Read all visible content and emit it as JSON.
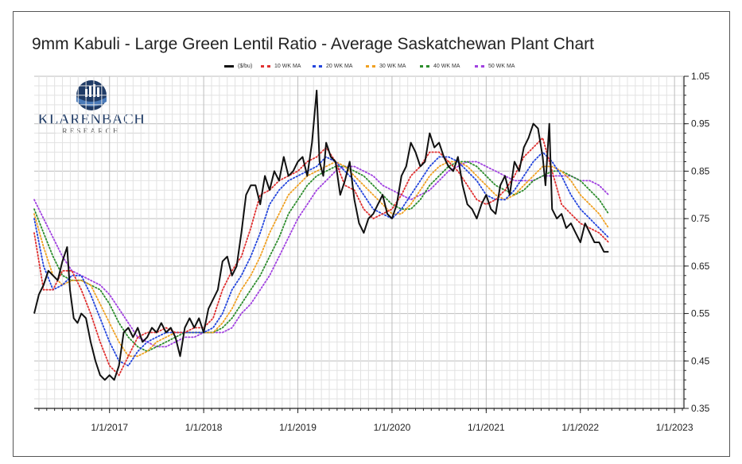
{
  "title": "9mm Kabuli - Large Green Lentil Ratio - Average Saskatchewan Plant Chart",
  "logo": {
    "brand": "KLARENBACH",
    "sub": "RESEARCH"
  },
  "legend": [
    {
      "label": "($/bu)",
      "color": "#111111",
      "style": "solid"
    },
    {
      "label": "10 WK MA",
      "color": "#e03030",
      "style": "dotted"
    },
    {
      "label": "20 WK MA",
      "color": "#2244dd",
      "style": "dotted"
    },
    {
      "label": "30 WK MA",
      "color": "#f0a020",
      "style": "dotted"
    },
    {
      "label": "40 WK MA",
      "color": "#2c8c2c",
      "style": "dotted"
    },
    {
      "label": "50 WK MA",
      "color": "#a040e0",
      "style": "dotted"
    }
  ],
  "chart_data": {
    "type": "line",
    "title": "9mm Kabuli - Large Green Lentil Ratio - Average Saskatchewan Plant Chart",
    "x_ticks": [
      "1/1/2017",
      "1/1/2018",
      "1/1/2019",
      "1/1/2020",
      "1/1/2021",
      "1/1/2022",
      "1/1/2023"
    ],
    "y_ticks": [
      "1.05",
      "0.95",
      "0.85",
      "0.75",
      "0.65",
      "0.55",
      "0.45",
      "0.35"
    ],
    "xlim": [
      2016.2,
      2023.1
    ],
    "ylim": [
      0.35,
      1.05
    ],
    "grid": true,
    "series": [
      {
        "name": "($/bu)",
        "color": "#111111",
        "x": [
          2016.2,
          2016.25,
          2016.3,
          2016.35,
          2016.4,
          2016.45,
          2016.5,
          2016.55,
          2016.58,
          2016.62,
          2016.66,
          2016.7,
          2016.75,
          2016.8,
          2016.85,
          2016.9,
          2016.95,
          2017.0,
          2017.05,
          2017.1,
          2017.15,
          2017.2,
          2017.25,
          2017.3,
          2017.35,
          2017.4,
          2017.45,
          2017.5,
          2017.55,
          2017.6,
          2017.65,
          2017.7,
          2017.75,
          2017.8,
          2017.85,
          2017.9,
          2017.95,
          2018.0,
          2018.05,
          2018.1,
          2018.15,
          2018.2,
          2018.25,
          2018.3,
          2018.35,
          2018.4,
          2018.45,
          2018.5,
          2018.55,
          2018.6,
          2018.65,
          2018.7,
          2018.75,
          2018.8,
          2018.85,
          2018.9,
          2018.95,
          2019.0,
          2019.05,
          2019.1,
          2019.15,
          2019.2,
          2019.23,
          2019.27,
          2019.3,
          2019.35,
          2019.4,
          2019.45,
          2019.5,
          2019.55,
          2019.6,
          2019.65,
          2019.7,
          2019.75,
          2019.8,
          2019.85,
          2019.9,
          2019.95,
          2020.0,
          2020.05,
          2020.1,
          2020.15,
          2020.2,
          2020.25,
          2020.3,
          2020.35,
          2020.4,
          2020.45,
          2020.5,
          2020.55,
          2020.6,
          2020.65,
          2020.7,
          2020.75,
          2020.8,
          2020.85,
          2020.9,
          2020.95,
          2021.0,
          2021.05,
          2021.1,
          2021.15,
          2021.2,
          2021.25,
          2021.3,
          2021.35,
          2021.4,
          2021.45,
          2021.5,
          2021.55,
          2021.6,
          2021.63,
          2021.67,
          2021.7,
          2021.75,
          2021.8,
          2021.85,
          2021.9,
          2021.95,
          2022.0,
          2022.05,
          2022.1,
          2022.15,
          2022.2,
          2022.25,
          2022.3
        ],
        "y": [
          0.55,
          0.59,
          0.61,
          0.64,
          0.63,
          0.62,
          0.66,
          0.69,
          0.6,
          0.54,
          0.53,
          0.55,
          0.54,
          0.49,
          0.45,
          0.42,
          0.41,
          0.42,
          0.41,
          0.44,
          0.51,
          0.52,
          0.5,
          0.52,
          0.49,
          0.5,
          0.52,
          0.51,
          0.53,
          0.51,
          0.52,
          0.5,
          0.46,
          0.52,
          0.54,
          0.52,
          0.54,
          0.51,
          0.56,
          0.58,
          0.6,
          0.66,
          0.67,
          0.63,
          0.65,
          0.72,
          0.8,
          0.82,
          0.82,
          0.78,
          0.84,
          0.81,
          0.85,
          0.83,
          0.88,
          0.84,
          0.85,
          0.87,
          0.88,
          0.84,
          0.91,
          1.02,
          0.87,
          0.84,
          0.91,
          0.88,
          0.87,
          0.8,
          0.83,
          0.87,
          0.79,
          0.74,
          0.72,
          0.75,
          0.76,
          0.78,
          0.8,
          0.76,
          0.75,
          0.78,
          0.84,
          0.86,
          0.91,
          0.89,
          0.86,
          0.87,
          0.93,
          0.9,
          0.91,
          0.88,
          0.86,
          0.85,
          0.88,
          0.82,
          0.78,
          0.77,
          0.75,
          0.78,
          0.8,
          0.77,
          0.76,
          0.82,
          0.84,
          0.8,
          0.87,
          0.85,
          0.9,
          0.92,
          0.95,
          0.94,
          0.88,
          0.82,
          0.95,
          0.77,
          0.75,
          0.76,
          0.73,
          0.74,
          0.72,
          0.7,
          0.74,
          0.72,
          0.7,
          0.7,
          0.68,
          0.68
        ]
      },
      {
        "name": "10 WK MA",
        "color": "#e03030",
        "x": [
          2016.2,
          2016.3,
          2016.4,
          2016.5,
          2016.6,
          2016.7,
          2016.8,
          2016.9,
          2017.0,
          2017.1,
          2017.2,
          2017.3,
          2017.4,
          2017.5,
          2017.6,
          2017.7,
          2017.8,
          2017.9,
          2018.0,
          2018.1,
          2018.2,
          2018.3,
          2018.4,
          2018.5,
          2018.6,
          2018.7,
          2018.8,
          2018.9,
          2019.0,
          2019.1,
          2019.2,
          2019.3,
          2019.4,
          2019.5,
          2019.6,
          2019.7,
          2019.8,
          2019.9,
          2020.0,
          2020.1,
          2020.2,
          2020.3,
          2020.4,
          2020.5,
          2020.6,
          2020.7,
          2020.8,
          2020.9,
          2021.0,
          2021.1,
          2021.2,
          2021.3,
          2021.4,
          2021.5,
          2021.6,
          2021.7,
          2021.8,
          2021.9,
          2022.0,
          2022.1,
          2022.2,
          2022.3
        ],
        "y": [
          0.72,
          0.6,
          0.6,
          0.64,
          0.64,
          0.6,
          0.55,
          0.49,
          0.44,
          0.42,
          0.46,
          0.5,
          0.51,
          0.51,
          0.52,
          0.51,
          0.51,
          0.52,
          0.52,
          0.54,
          0.6,
          0.64,
          0.67,
          0.73,
          0.8,
          0.81,
          0.83,
          0.84,
          0.85,
          0.87,
          0.88,
          0.9,
          0.87,
          0.82,
          0.81,
          0.77,
          0.75,
          0.76,
          0.77,
          0.8,
          0.84,
          0.86,
          0.89,
          0.89,
          0.87,
          0.85,
          0.82,
          0.79,
          0.78,
          0.79,
          0.81,
          0.84,
          0.88,
          0.9,
          0.92,
          0.85,
          0.78,
          0.76,
          0.74,
          0.73,
          0.72,
          0.7
        ]
      },
      {
        "name": "20 WK MA",
        "color": "#2244dd",
        "x": [
          2016.2,
          2016.3,
          2016.4,
          2016.5,
          2016.6,
          2016.7,
          2016.8,
          2016.9,
          2017.0,
          2017.1,
          2017.2,
          2017.3,
          2017.4,
          2017.5,
          2017.6,
          2017.7,
          2017.8,
          2017.9,
          2018.0,
          2018.1,
          2018.2,
          2018.3,
          2018.4,
          2018.5,
          2018.6,
          2018.7,
          2018.8,
          2018.9,
          2019.0,
          2019.1,
          2019.2,
          2019.3,
          2019.4,
          2019.5,
          2019.6,
          2019.7,
          2019.8,
          2019.9,
          2020.0,
          2020.1,
          2020.2,
          2020.3,
          2020.4,
          2020.5,
          2020.6,
          2020.7,
          2020.8,
          2020.9,
          2021.0,
          2021.1,
          2021.2,
          2021.3,
          2021.4,
          2021.5,
          2021.6,
          2021.7,
          2021.8,
          2021.9,
          2022.0,
          2022.1,
          2022.2,
          2022.3
        ],
        "y": [
          0.75,
          0.65,
          0.6,
          0.61,
          0.63,
          0.63,
          0.59,
          0.54,
          0.49,
          0.45,
          0.44,
          0.47,
          0.49,
          0.5,
          0.51,
          0.51,
          0.51,
          0.51,
          0.51,
          0.52,
          0.55,
          0.6,
          0.63,
          0.67,
          0.72,
          0.78,
          0.81,
          0.83,
          0.84,
          0.85,
          0.86,
          0.88,
          0.87,
          0.85,
          0.83,
          0.8,
          0.77,
          0.76,
          0.75,
          0.77,
          0.8,
          0.83,
          0.86,
          0.88,
          0.88,
          0.87,
          0.85,
          0.83,
          0.8,
          0.79,
          0.79,
          0.81,
          0.84,
          0.87,
          0.89,
          0.87,
          0.84,
          0.8,
          0.77,
          0.75,
          0.73,
          0.71
        ]
      },
      {
        "name": "30 WK MA",
        "color": "#f0a020",
        "x": [
          2016.2,
          2016.3,
          2016.4,
          2016.5,
          2016.6,
          2016.7,
          2016.8,
          2016.9,
          2017.0,
          2017.1,
          2017.2,
          2017.3,
          2017.4,
          2017.5,
          2017.6,
          2017.7,
          2017.8,
          2017.9,
          2018.0,
          2018.1,
          2018.2,
          2018.3,
          2018.4,
          2018.5,
          2018.6,
          2018.7,
          2018.8,
          2018.9,
          2019.0,
          2019.1,
          2019.2,
          2019.3,
          2019.4,
          2019.5,
          2019.6,
          2019.7,
          2019.8,
          2019.9,
          2020.0,
          2020.1,
          2020.2,
          2020.3,
          2020.4,
          2020.5,
          2020.6,
          2020.7,
          2020.8,
          2020.9,
          2021.0,
          2021.1,
          2021.2,
          2021.3,
          2021.4,
          2021.5,
          2021.6,
          2021.7,
          2021.8,
          2021.9,
          2022.0,
          2022.1,
          2022.2,
          2022.3
        ],
        "y": [
          0.76,
          0.69,
          0.63,
          0.61,
          0.62,
          0.62,
          0.61,
          0.57,
          0.53,
          0.49,
          0.46,
          0.46,
          0.47,
          0.49,
          0.5,
          0.51,
          0.51,
          0.51,
          0.51,
          0.51,
          0.53,
          0.56,
          0.6,
          0.63,
          0.67,
          0.72,
          0.76,
          0.8,
          0.82,
          0.84,
          0.85,
          0.86,
          0.87,
          0.86,
          0.84,
          0.82,
          0.8,
          0.78,
          0.76,
          0.76,
          0.78,
          0.81,
          0.84,
          0.86,
          0.87,
          0.87,
          0.86,
          0.84,
          0.82,
          0.8,
          0.79,
          0.8,
          0.82,
          0.84,
          0.86,
          0.86,
          0.85,
          0.83,
          0.8,
          0.78,
          0.76,
          0.73
        ]
      },
      {
        "name": "40 WK MA",
        "color": "#2c8c2c",
        "x": [
          2016.2,
          2016.3,
          2016.4,
          2016.5,
          2016.6,
          2016.7,
          2016.8,
          2016.9,
          2017.0,
          2017.1,
          2017.2,
          2017.3,
          2017.4,
          2017.5,
          2017.6,
          2017.7,
          2017.8,
          2017.9,
          2018.0,
          2018.1,
          2018.2,
          2018.3,
          2018.4,
          2018.5,
          2018.6,
          2018.7,
          2018.8,
          2018.9,
          2019.0,
          2019.1,
          2019.2,
          2019.3,
          2019.4,
          2019.5,
          2019.6,
          2019.7,
          2019.8,
          2019.9,
          2020.0,
          2020.1,
          2020.2,
          2020.3,
          2020.4,
          2020.5,
          2020.6,
          2020.7,
          2020.8,
          2020.9,
          2021.0,
          2021.1,
          2021.2,
          2021.3,
          2021.4,
          2021.5,
          2021.6,
          2021.7,
          2021.8,
          2021.9,
          2022.0,
          2022.1,
          2022.2,
          2022.3
        ],
        "y": [
          0.77,
          0.72,
          0.67,
          0.63,
          0.62,
          0.62,
          0.61,
          0.6,
          0.57,
          0.53,
          0.5,
          0.48,
          0.47,
          0.48,
          0.49,
          0.5,
          0.51,
          0.51,
          0.51,
          0.51,
          0.52,
          0.54,
          0.57,
          0.6,
          0.63,
          0.67,
          0.71,
          0.76,
          0.79,
          0.82,
          0.84,
          0.85,
          0.86,
          0.86,
          0.85,
          0.84,
          0.82,
          0.8,
          0.78,
          0.77,
          0.77,
          0.79,
          0.82,
          0.84,
          0.86,
          0.87,
          0.87,
          0.86,
          0.84,
          0.82,
          0.81,
          0.8,
          0.81,
          0.83,
          0.84,
          0.85,
          0.85,
          0.84,
          0.83,
          0.81,
          0.79,
          0.76
        ]
      },
      {
        "name": "50 WK MA",
        "color": "#a040e0",
        "x": [
          2016.2,
          2016.3,
          2016.4,
          2016.5,
          2016.6,
          2016.7,
          2016.8,
          2016.9,
          2017.0,
          2017.1,
          2017.2,
          2017.3,
          2017.4,
          2017.5,
          2017.6,
          2017.7,
          2017.8,
          2017.9,
          2018.0,
          2018.1,
          2018.2,
          2018.3,
          2018.4,
          2018.5,
          2018.6,
          2018.7,
          2018.8,
          2018.9,
          2019.0,
          2019.1,
          2019.2,
          2019.3,
          2019.4,
          2019.5,
          2019.6,
          2019.7,
          2019.8,
          2019.9,
          2020.0,
          2020.1,
          2020.2,
          2020.3,
          2020.4,
          2020.5,
          2020.6,
          2020.7,
          2020.8,
          2020.9,
          2021.0,
          2021.1,
          2021.2,
          2021.3,
          2021.4,
          2021.5,
          2021.6,
          2021.7,
          2021.8,
          2021.9,
          2022.0,
          2022.1,
          2022.2,
          2022.3
        ],
        "y": [
          0.79,
          0.75,
          0.71,
          0.67,
          0.64,
          0.63,
          0.62,
          0.61,
          0.59,
          0.56,
          0.53,
          0.5,
          0.49,
          0.48,
          0.48,
          0.49,
          0.5,
          0.5,
          0.51,
          0.51,
          0.51,
          0.52,
          0.55,
          0.57,
          0.6,
          0.63,
          0.67,
          0.71,
          0.75,
          0.78,
          0.81,
          0.83,
          0.85,
          0.86,
          0.86,
          0.85,
          0.84,
          0.82,
          0.81,
          0.8,
          0.79,
          0.8,
          0.81,
          0.83,
          0.85,
          0.86,
          0.87,
          0.87,
          0.86,
          0.85,
          0.84,
          0.83,
          0.83,
          0.83,
          0.84,
          0.84,
          0.84,
          0.84,
          0.83,
          0.83,
          0.82,
          0.8
        ]
      }
    ]
  }
}
